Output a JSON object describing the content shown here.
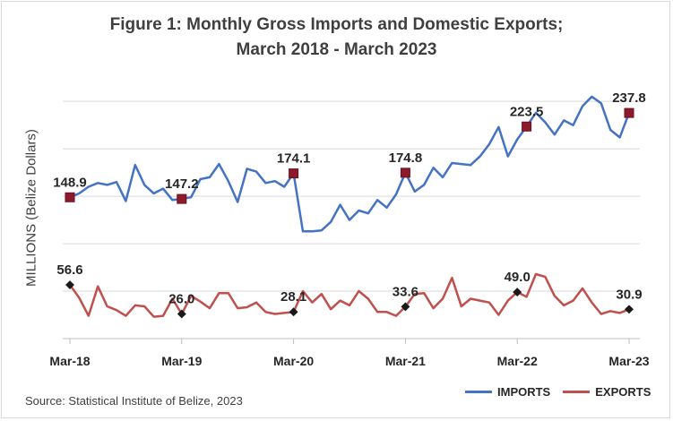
{
  "chart_data": {
    "type": "line",
    "title_line1": "Figure 1: Monthly Gross Imports and Domestic Exports;",
    "title_line2": "March 2018 - March 2023",
    "ylabel": "MILLIONS (Belize Dollars)",
    "source": "Source: Statistical Institute of Belize, 2023",
    "ylim": [
      0,
      270
    ],
    "grid": "horizontal",
    "legend_position": "bottom-right",
    "x_tick_labels": [
      "Mar-18",
      "Mar-19",
      "Mar-20",
      "Mar-21",
      "Mar-22",
      "Mar-23"
    ],
    "x_tick_index": [
      0,
      12,
      24,
      36,
      48,
      60
    ],
    "series": [
      {
        "name": "IMPORTS",
        "color": "#4472c4",
        "values": [
          148.9,
          153,
          160,
          164,
          162,
          165,
          145,
          183,
          162,
          153,
          158,
          146,
          147.2,
          149,
          168,
          170,
          184,
          166,
          144,
          179,
          176,
          164,
          166,
          160,
          174.1,
          113,
          113,
          114,
          123,
          141,
          125,
          135,
          132,
          146,
          138,
          152,
          174.8,
          155,
          162,
          180,
          170,
          185,
          184,
          183,
          192,
          205,
          223,
          192,
          210,
          223.5,
          238,
          228,
          215,
          230,
          225,
          245,
          255,
          248,
          220,
          212,
          237.8
        ],
        "labels": {
          "0": "148.9",
          "12": "147.2",
          "24": "174.1",
          "36": "174.8",
          "49": "223.5",
          "60": "237.8"
        }
      },
      {
        "name": "EXPORTS",
        "color": "#c0504d",
        "values": [
          56.6,
          43,
          24,
          55,
          34,
          30,
          24,
          35,
          34,
          23,
          24,
          42,
          26.0,
          45,
          39,
          32,
          48,
          48,
          32,
          33,
          38,
          28,
          26,
          27,
          28.1,
          50,
          38,
          47,
          31,
          40,
          35,
          50,
          42,
          28,
          28,
          24,
          33.6,
          47,
          48,
          32,
          42,
          64,
          34,
          42,
          40,
          38,
          25,
          40,
          49.0,
          44,
          68,
          65,
          45,
          35,
          40,
          53,
          38,
          26,
          29,
          27,
          30.9
        ],
        "labels": {
          "0": "56.6",
          "12": "26.0",
          "24": "28.1",
          "36": "33.6",
          "48": "49.0",
          "60": "30.9"
        }
      }
    ]
  }
}
